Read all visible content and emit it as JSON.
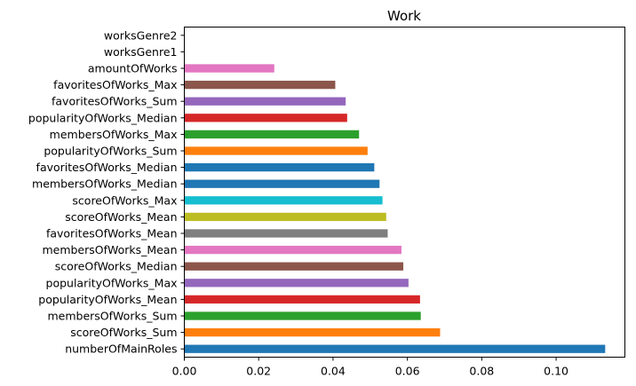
{
  "chart_data": {
    "type": "bar",
    "orientation": "horizontal",
    "title": "Work",
    "xlabel": "",
    "ylabel": "",
    "xlim": [
      0,
      0.1185
    ],
    "xticks": [
      "0.00",
      "0.02",
      "0.04",
      "0.06",
      "0.08",
      "0.10"
    ],
    "xtick_values": [
      0,
      0.02,
      0.04,
      0.06,
      0.08,
      0.1
    ],
    "grid": false,
    "categories": [
      "numberOfMainRoles",
      "scoreOfWorks_Sum",
      "membersOfWorks_Sum",
      "popularityOfWorks_Mean",
      "popularityOfWorks_Max",
      "scoreOfWorks_Median",
      "membersOfWorks_Mean",
      "favoritesOfWorks_Mean",
      "scoreOfWorks_Mean",
      "scoreOfWorks_Max",
      "membersOfWorks_Median",
      "favoritesOfWorks_Median",
      "popularityOfWorks_Sum",
      "membersOfWorks_Max",
      "popularityOfWorks_Median",
      "favoritesOfWorks_Sum",
      "favoritesOfWorks_Max",
      "amountOfWorks",
      "worksGenre1",
      "worksGenre2"
    ],
    "values": [
      0.1132,
      0.0688,
      0.0636,
      0.0634,
      0.0603,
      0.0589,
      0.0584,
      0.0547,
      0.0543,
      0.0533,
      0.0525,
      0.0511,
      0.0493,
      0.047,
      0.0438,
      0.0434,
      0.0406,
      0.0242,
      0.0,
      0.0
    ],
    "colors": [
      "#1f77b4",
      "#ff7f0e",
      "#2ca02c",
      "#d62728",
      "#9467bd",
      "#8c564b",
      "#e377c2",
      "#7f7f7f",
      "#bcbd22",
      "#17becf",
      "#1f77b4",
      "#1f77b4",
      "#ff7f0e",
      "#2ca02c",
      "#d62728",
      "#9467bd",
      "#8c564b",
      "#e377c2",
      "#7f7f7f",
      "#bcbd22"
    ]
  }
}
